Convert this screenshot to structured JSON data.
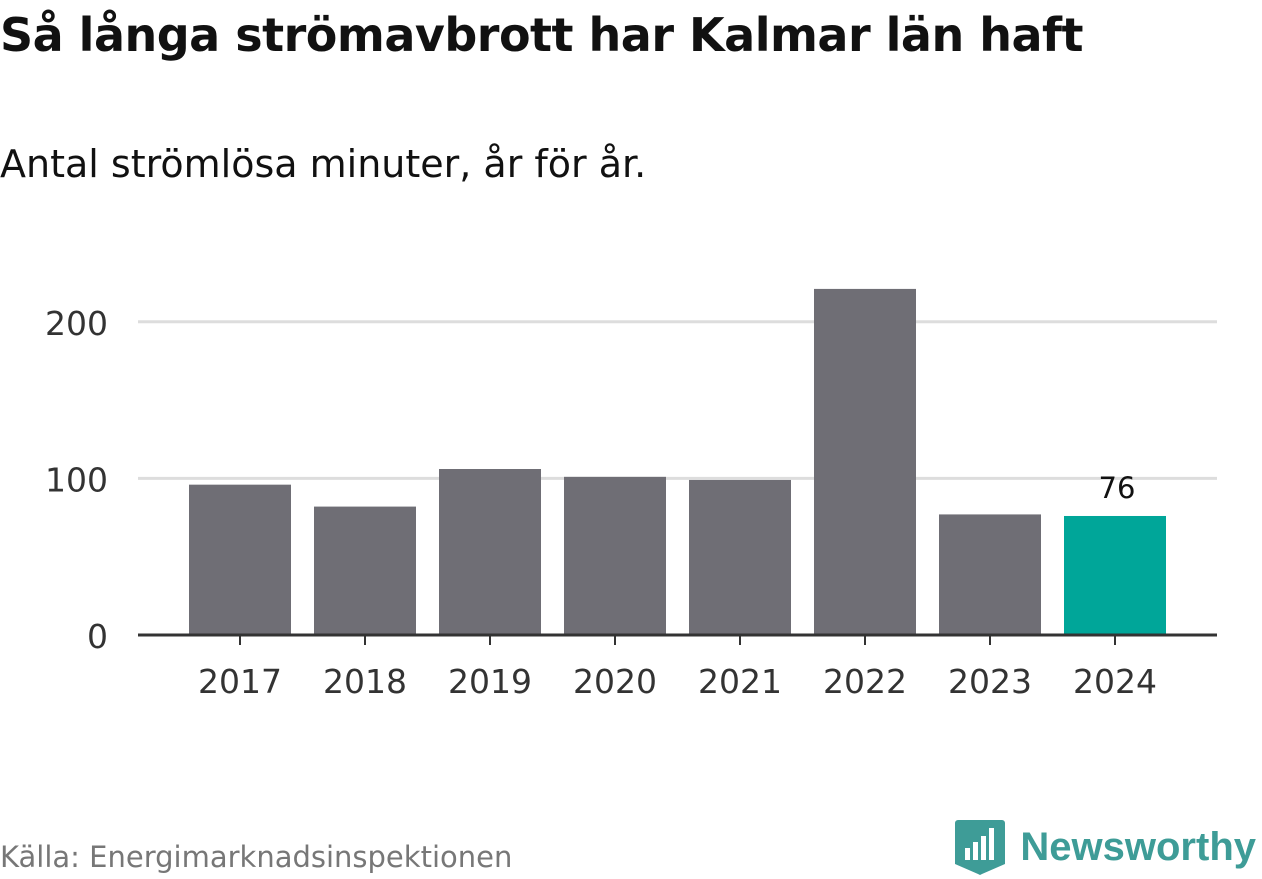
{
  "title": "Så långa strömavbrott har Kalmar län haft",
  "subtitle": "Antal strömlösa minuter, år för år.",
  "source": "Källa: Energimarknadsinspektionen",
  "brand": {
    "name": "Newsworthy",
    "icon": "newsworthy-logo-icon",
    "color": "#3e9c97"
  },
  "colors": {
    "bar": "#6f6e75",
    "highlight": "#00a699",
    "grid": "#dddddd",
    "axis": "#333333"
  },
  "chart_data": {
    "type": "bar",
    "title": "Så långa strömavbrott har Kalmar län haft",
    "subtitle": "Antal strömlösa minuter, år för år.",
    "xlabel": "",
    "ylabel": "",
    "categories": [
      "2017",
      "2018",
      "2019",
      "2020",
      "2021",
      "2022",
      "2023",
      "2024"
    ],
    "values": [
      96,
      82,
      106,
      101,
      99,
      221,
      77,
      76
    ],
    "ylim": [
      0,
      240
    ],
    "yticks": [
      0,
      100,
      200
    ],
    "grid": true,
    "highlight_index": 7,
    "data_labels": [
      {
        "index": 7,
        "text": "76"
      }
    ]
  }
}
